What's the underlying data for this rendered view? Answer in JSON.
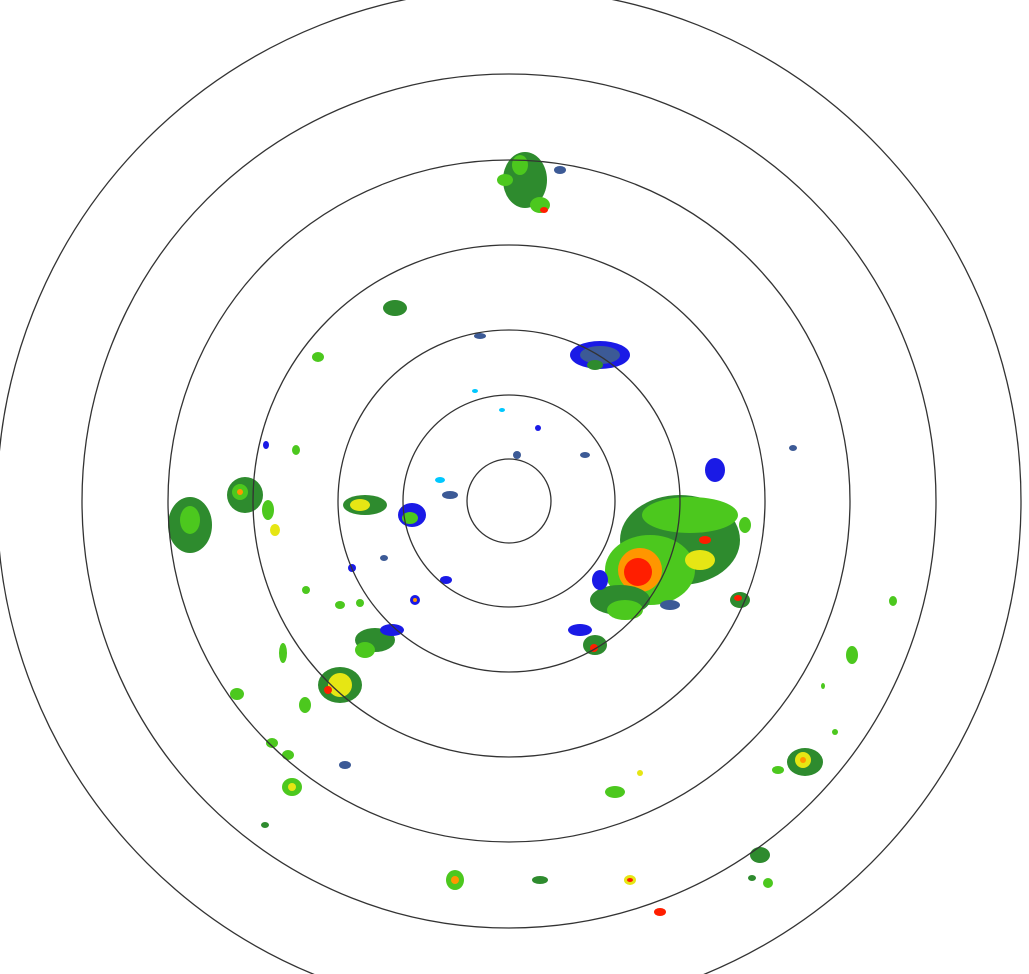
{
  "radar": {
    "range_ring_count": 7,
    "ring_color": "#333333",
    "background": "#ffffff",
    "reflectivity_colors": {
      "light_cyan": "#00c8ff",
      "blue": "#1a1ae6",
      "slate": "#3c5a96",
      "dark_green": "#2e8b2e",
      "green": "#4cc81e",
      "yellow": "#e6e614",
      "orange": "#ff9600",
      "red": "#ff1e00"
    }
  }
}
